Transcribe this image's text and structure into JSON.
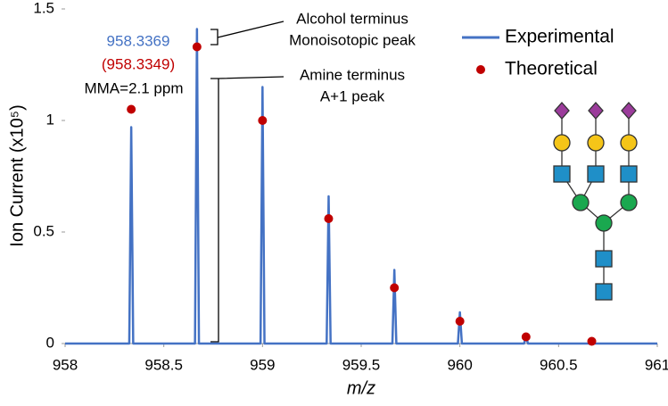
{
  "chart_data": {
    "type": "line",
    "xlabel": "m/z",
    "ylabel": "Ion Current (x10⁵)",
    "xlim": [
      958,
      961
    ],
    "xticks": [
      958,
      958.5,
      959,
      959.5,
      960,
      960.5,
      961
    ],
    "ylim": [
      0,
      1.5
    ],
    "yticks": [
      0,
      0.5,
      1,
      1.5
    ],
    "grid": false,
    "legend": "upper right",
    "series": [
      {
        "name": "Experimental",
        "color": "#4472c4",
        "kind": "line",
        "x": [
          958,
          958.325,
          958.335,
          958.345,
          958.658,
          958.668,
          958.678,
          958.99,
          959.0,
          959.01,
          959.325,
          959.335,
          959.345,
          959.658,
          959.668,
          959.678,
          959.99,
          960.0,
          960.01,
          960.325,
          960.335,
          960.345,
          961
        ],
        "values": [
          0,
          0,
          0.97,
          0,
          0,
          1.41,
          0,
          0,
          1.15,
          0,
          0,
          0.66,
          0,
          0,
          0.33,
          0,
          0,
          0.14,
          0,
          0,
          0.03,
          0,
          0
        ]
      },
      {
        "name": "Theoretical",
        "color": "#c00000",
        "kind": "scatter",
        "x": [
          958.335,
          958.668,
          959.0,
          959.335,
          959.668,
          960.0,
          960.335,
          960.668
        ],
        "values": [
          1.05,
          1.33,
          1.0,
          0.56,
          0.25,
          0.1,
          0.03,
          0.01
        ]
      }
    ],
    "annotations": {
      "observed": "958.3369",
      "theoretical": "(958.3349)",
      "mma": "MMA=2.1 ppm",
      "alcohol_1": "Alcohol terminus",
      "alcohol_2": "Monoisotopic peak",
      "amine_1": "Amine terminus",
      "amine_2": "A+1 peak"
    }
  }
}
